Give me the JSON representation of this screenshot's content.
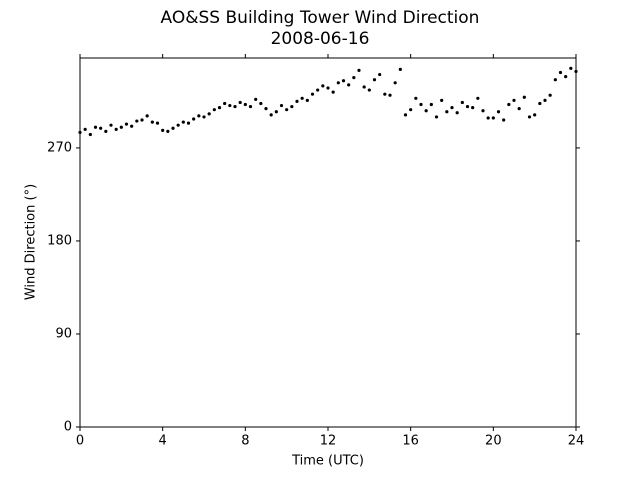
{
  "chart_data": {
    "type": "scatter",
    "title": "AO&SS Building Tower Wind Direction",
    "subtitle": "2008-06-16",
    "xlabel": "Time (UTC)",
    "ylabel": "Wind Direction (°)",
    "color": "#000000",
    "x": [
      0,
      0.25,
      0.5,
      0.75,
      1,
      1.25,
      1.5,
      1.75,
      2,
      2.25,
      2.5,
      2.75,
      3,
      3.25,
      3.5,
      3.75,
      4,
      4.25,
      4.5,
      4.75,
      5,
      5.25,
      5.5,
      5.75,
      6,
      6.25,
      6.5,
      6.75,
      7,
      7.25,
      7.5,
      7.75,
      8,
      8.25,
      8.5,
      8.75,
      9,
      9.25,
      9.5,
      9.75,
      10,
      10.25,
      10.5,
      10.75,
      11,
      11.25,
      11.5,
      11.75,
      12,
      12.25,
      12.5,
      12.75,
      13,
      13.25,
      13.5,
      13.75,
      14,
      14.25,
      14.5,
      14.75,
      15,
      15.25,
      15.5,
      15.75,
      16,
      16.25,
      16.5,
      16.75,
      17,
      17.25,
      17.5,
      17.75,
      18,
      18.25,
      18.5,
      18.75,
      19,
      19.25,
      19.5,
      19.75,
      20,
      20.25,
      20.5,
      20.75,
      21,
      21.25,
      21.5,
      21.75,
      22,
      22.25,
      22.5,
      22.75,
      23,
      23.25,
      23.5,
      23.75,
      24
    ],
    "values": [
      285,
      288,
      283,
      290,
      289,
      286,
      292,
      288,
      290,
      293,
      291,
      296,
      297,
      301,
      295,
      294,
      287,
      286,
      289,
      292,
      295,
      294,
      298,
      301,
      300,
      303,
      307,
      309,
      313,
      311,
      310,
      314,
      312,
      310,
      317,
      313,
      308,
      302,
      305,
      311,
      307,
      310,
      315,
      318,
      316,
      322,
      326,
      330,
      328,
      324,
      333,
      335,
      331,
      338,
      345,
      329,
      326,
      336,
      341,
      322,
      321,
      333,
      346,
      302,
      307,
      318,
      312,
      306,
      312,
      300,
      316,
      305,
      309,
      304,
      314,
      310,
      309,
      318,
      306,
      299,
      299,
      305,
      297,
      312,
      316,
      308,
      319,
      300,
      302,
      313,
      316,
      321,
      336,
      343,
      339,
      347,
      344
    ],
    "xlim": [
      0,
      24
    ],
    "ylim": [
      0,
      357
    ],
    "xticks": [
      0,
      4,
      8,
      12,
      16,
      20,
      24
    ],
    "yticks": [
      0,
      90,
      180,
      270
    ]
  }
}
